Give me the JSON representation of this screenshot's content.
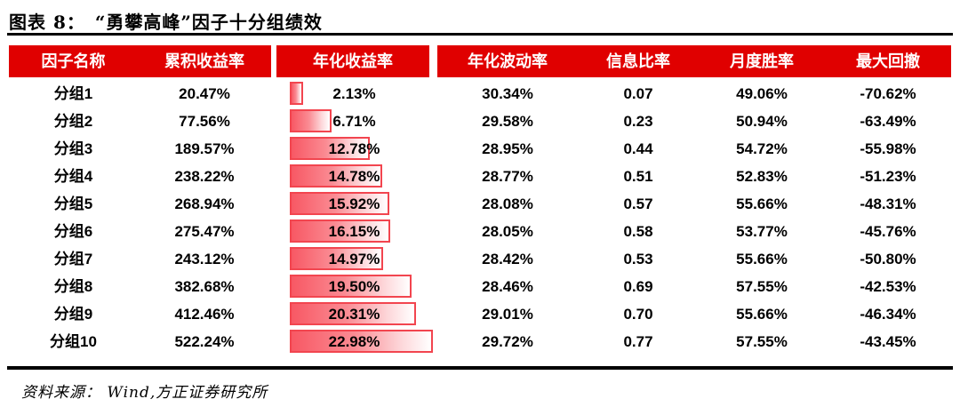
{
  "page": {
    "figure_heading": "图表 8：　“勇攀高峰”因子十分组绩效",
    "source_note": "资料来源：  Wind,方正证券研究所"
  },
  "colors": {
    "header_bg": "#e00000",
    "header_text": "#ffffff",
    "bar_border": "#f2454f",
    "bar_fill_left": "#f85864",
    "bar_fill_right": "#ffffff",
    "rule": "#000000",
    "text": "#000000"
  },
  "chart_data": {
    "type": "table",
    "figure_number": "图表 8",
    "title": "“勇攀高峰”因子十分组绩效",
    "columns": [
      "因子名称",
      "累积收益率",
      "年化收益率",
      "年化波动率",
      "信息比率",
      "月度胜率",
      "最大回撤"
    ],
    "rows": [
      [
        "分组1",
        "20.47%",
        "2.13%",
        "30.34%",
        "0.07",
        "49.06%",
        "-70.62%"
      ],
      [
        "分组2",
        "77.56%",
        "6.71%",
        "29.58%",
        "0.23",
        "50.94%",
        "-63.49%"
      ],
      [
        "分组3",
        "189.57%",
        "12.78%",
        "28.95%",
        "0.44",
        "54.72%",
        "-55.98%"
      ],
      [
        "分组4",
        "238.22%",
        "14.78%",
        "28.77%",
        "0.51",
        "52.83%",
        "-51.23%"
      ],
      [
        "分组5",
        "268.94%",
        "15.92%",
        "28.08%",
        "0.57",
        "55.66%",
        "-48.31%"
      ],
      [
        "分组6",
        "275.47%",
        "16.15%",
        "28.05%",
        "0.58",
        "53.77%",
        "-45.76%"
      ],
      [
        "分组7",
        "243.12%",
        "14.97%",
        "28.42%",
        "0.53",
        "55.66%",
        "-50.80%"
      ],
      [
        "分组8",
        "382.68%",
        "19.50%",
        "28.46%",
        "0.69",
        "57.55%",
        "-42.53%"
      ],
      [
        "分组9",
        "412.46%",
        "20.31%",
        "29.01%",
        "0.70",
        "55.66%",
        "-46.34%"
      ],
      [
        "分组10",
        "522.24%",
        "22.98%",
        "29.72%",
        "0.77",
        "57.55%",
        "-43.45%"
      ]
    ],
    "databar": {
      "column": "年化收益率",
      "column_index": 2,
      "values": [
        2.13,
        6.71,
        12.78,
        14.78,
        15.92,
        16.15,
        14.97,
        19.5,
        20.31,
        22.98
      ],
      "scale_min": 0,
      "scale_max": 22.98,
      "unit": "%"
    },
    "source": "Wind,方正证券研究所"
  }
}
